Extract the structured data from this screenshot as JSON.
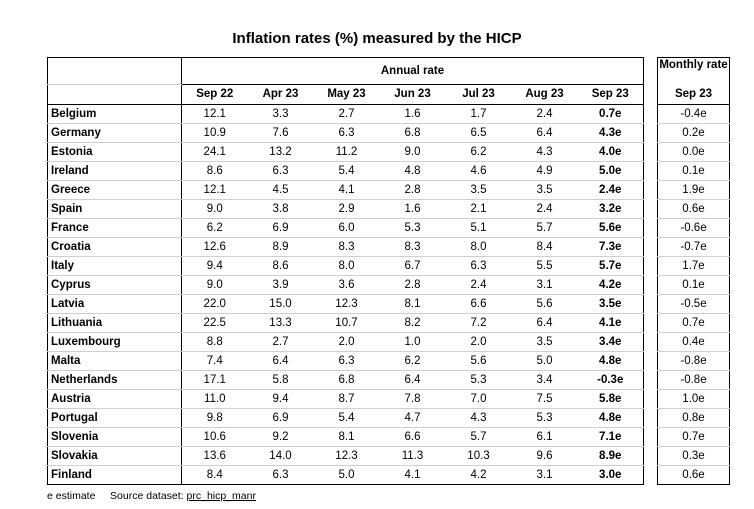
{
  "title": "Inflation rates (%) measured by the HICP",
  "annual_header": "Annual rate",
  "monthly_header": "Monthly rate",
  "columns": [
    "Sep 22",
    "Apr 23",
    "May 23",
    "Jun 23",
    "Jul 23",
    "Aug 23",
    "Sep 23"
  ],
  "monthly_column": "Sep 23",
  "rows": [
    {
      "country": "Belgium",
      "values": [
        "12.1",
        "3.3",
        "2.7",
        "1.6",
        "1.7",
        "2.4",
        "0.7e"
      ],
      "monthly": "-0.4e"
    },
    {
      "country": "Germany",
      "values": [
        "10.9",
        "7.6",
        "6.3",
        "6.8",
        "6.5",
        "6.4",
        "4.3e"
      ],
      "monthly": "0.2e"
    },
    {
      "country": "Estonia",
      "values": [
        "24.1",
        "13.2",
        "11.2",
        "9.0",
        "6.2",
        "4.3",
        "4.0e"
      ],
      "monthly": "0.0e"
    },
    {
      "country": "Ireland",
      "values": [
        "8.6",
        "6.3",
        "5.4",
        "4.8",
        "4.6",
        "4.9",
        "5.0e"
      ],
      "monthly": "0.1e"
    },
    {
      "country": "Greece",
      "values": [
        "12.1",
        "4.5",
        "4.1",
        "2.8",
        "3.5",
        "3.5",
        "2.4e"
      ],
      "monthly": "1.9e"
    },
    {
      "country": "Spain",
      "values": [
        "9.0",
        "3.8",
        "2.9",
        "1.6",
        "2.1",
        "2.4",
        "3.2e"
      ],
      "monthly": "0.6e"
    },
    {
      "country": "France",
      "values": [
        "6.2",
        "6.9",
        "6.0",
        "5.3",
        "5.1",
        "5.7",
        "5.6e"
      ],
      "monthly": "-0.6e"
    },
    {
      "country": "Croatia",
      "values": [
        "12.6",
        "8.9",
        "8.3",
        "8.3",
        "8.0",
        "8.4",
        "7.3e"
      ],
      "monthly": "-0.7e"
    },
    {
      "country": "Italy",
      "values": [
        "9.4",
        "8.6",
        "8.0",
        "6.7",
        "6.3",
        "5.5",
        "5.7e"
      ],
      "monthly": "1.7e"
    },
    {
      "country": "Cyprus",
      "values": [
        "9.0",
        "3.9",
        "3.6",
        "2.8",
        "2.4",
        "3.1",
        "4.2e"
      ],
      "monthly": "0.1e"
    },
    {
      "country": "Latvia",
      "values": [
        "22.0",
        "15.0",
        "12.3",
        "8.1",
        "6.6",
        "5.6",
        "3.5e"
      ],
      "monthly": "-0.5e"
    },
    {
      "country": "Lithuania",
      "values": [
        "22.5",
        "13.3",
        "10.7",
        "8.2",
        "7.2",
        "6.4",
        "4.1e"
      ],
      "monthly": "0.7e"
    },
    {
      "country": "Luxembourg",
      "values": [
        "8.8",
        "2.7",
        "2.0",
        "1.0",
        "2.0",
        "3.5",
        "3.4e"
      ],
      "monthly": "0.4e"
    },
    {
      "country": "Malta",
      "values": [
        "7.4",
        "6.4",
        "6.3",
        "6.2",
        "5.6",
        "5.0",
        "4.8e"
      ],
      "monthly": "-0.8e"
    },
    {
      "country": "Netherlands",
      "values": [
        "17.1",
        "5.8",
        "6.8",
        "6.4",
        "5.3",
        "3.4",
        "-0.3e"
      ],
      "monthly": "-0.8e"
    },
    {
      "country": "Austria",
      "values": [
        "11.0",
        "9.4",
        "8.7",
        "7.8",
        "7.0",
        "7.5",
        "5.8e"
      ],
      "monthly": "1.0e"
    },
    {
      "country": "Portugal",
      "values": [
        "9.8",
        "6.9",
        "5.4",
        "4.7",
        "4.3",
        "5.3",
        "4.8e"
      ],
      "monthly": "0.8e"
    },
    {
      "country": "Slovenia",
      "values": [
        "10.6",
        "9.2",
        "8.1",
        "6.6",
        "5.7",
        "6.1",
        "7.1e"
      ],
      "monthly": "0.7e"
    },
    {
      "country": "Slovakia",
      "values": [
        "13.6",
        "14.0",
        "12.3",
        "11.3",
        "10.3",
        "9.6",
        "8.9e"
      ],
      "monthly": "0.3e"
    },
    {
      "country": "Finland",
      "values": [
        "8.4",
        "6.3",
        "5.0",
        "4.1",
        "4.2",
        "3.1",
        "3.0e"
      ],
      "monthly": "0.6e"
    }
  ],
  "footnote": {
    "estimate_label": "e estimate",
    "source_label": "Source dataset:",
    "source_link": "prc_hicp_manr"
  }
}
